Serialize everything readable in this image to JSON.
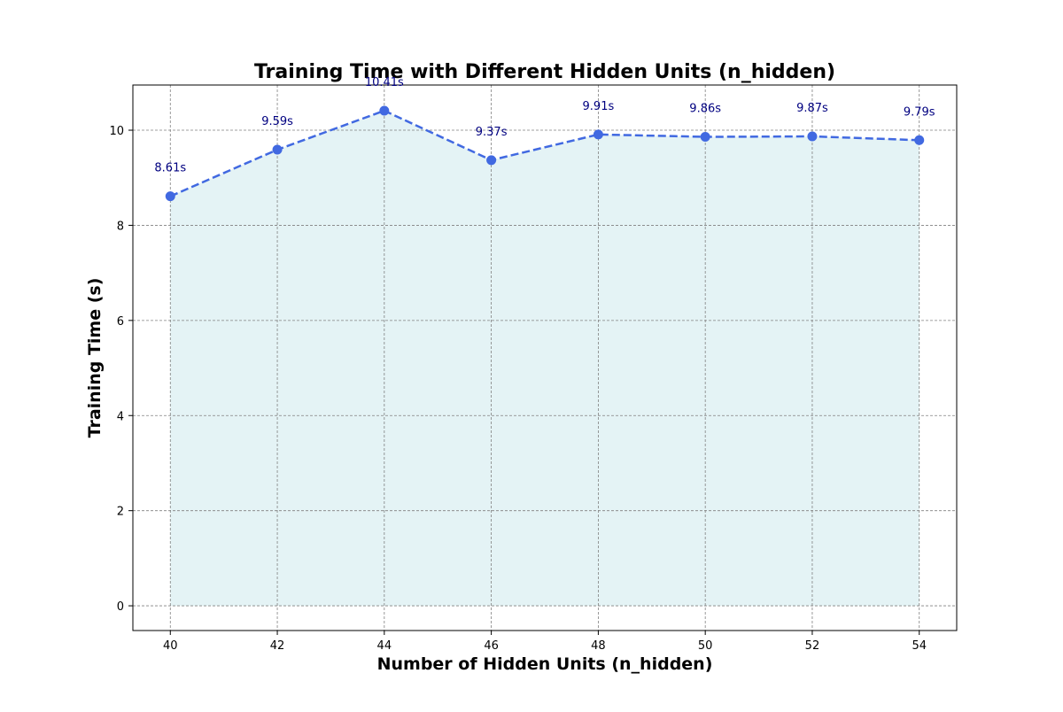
{
  "chart_data": {
    "type": "line",
    "title": "Training Time with Different Hidden Units (n_hidden)",
    "xlabel": "Number of Hidden Units (n_hidden)",
    "ylabel": "Training Time (s)",
    "x": [
      40,
      42,
      44,
      46,
      48,
      50,
      52,
      54
    ],
    "series": [
      {
        "values": [
          8.61,
          9.59,
          10.41,
          9.37,
          9.91,
          9.86,
          9.87,
          9.79
        ]
      }
    ],
    "data_labels": [
      "8.61s",
      "9.59s",
      "10.41s",
      "9.37s",
      "9.91s",
      "9.86s",
      "9.87s",
      "9.79s"
    ],
    "xlim": [
      39.3,
      54.7
    ],
    "ylim": [
      -0.52,
      10.95
    ],
    "x_ticks": [
      40,
      42,
      44,
      46,
      48,
      50,
      52,
      54
    ],
    "y_ticks": [
      0,
      2,
      4,
      6,
      8,
      10
    ],
    "grid": true,
    "line_style": "dashed",
    "marker": "circle",
    "area_fill": true,
    "colors": {
      "line": "#4169e1",
      "fill": "#e4f3f5",
      "data_label": "#000080",
      "grid": "#808080",
      "axes": "#000000"
    }
  }
}
